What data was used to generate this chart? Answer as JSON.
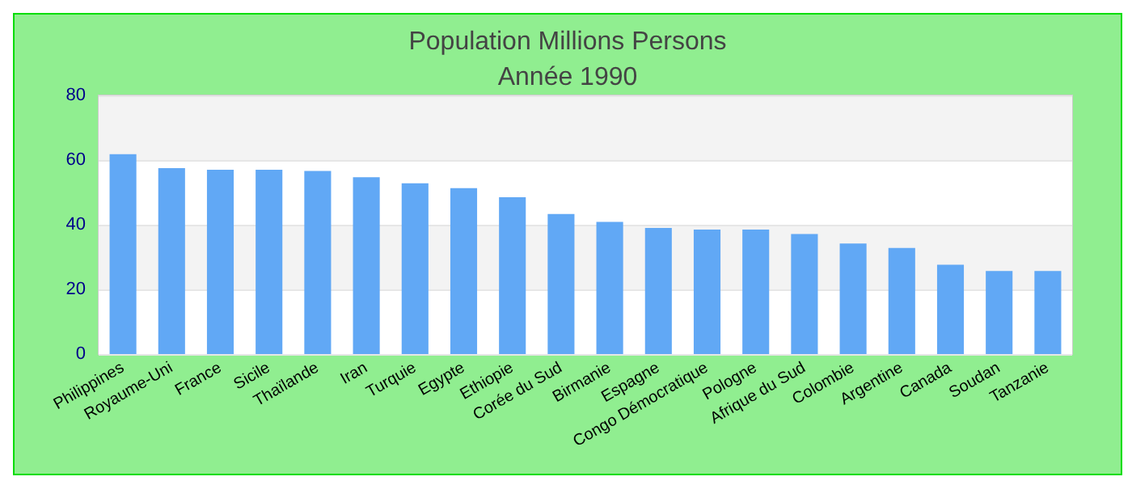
{
  "chart_data": {
    "type": "bar",
    "title": "Population Millions Persons",
    "subtitle": "Année 1990",
    "categories": [
      "Philippines",
      "Royaume-Uni",
      "France",
      "Sicile",
      "Thaïlande",
      "Iran",
      "Turquie",
      "Egypte",
      "Ethiopie",
      "Corée du Sud",
      "Birmanie",
      "Espagne",
      "Congo Démocratique",
      "Pologne",
      "Afrique du Sud",
      "Colombie",
      "Argentine",
      "Canada",
      "Soudan",
      "Tanzanie"
    ],
    "values": [
      61.8,
      57.5,
      57.0,
      57.0,
      56.6,
      54.7,
      52.8,
      51.3,
      48.5,
      43.3,
      40.9,
      39.0,
      38.5,
      38.5,
      37.1,
      34.2,
      32.8,
      27.6,
      25.7,
      25.7
    ],
    "color": "#61a8f5",
    "ylim": [
      0,
      80
    ],
    "yticks": [
      0,
      20,
      40,
      60,
      80
    ],
    "grid": "y"
  }
}
